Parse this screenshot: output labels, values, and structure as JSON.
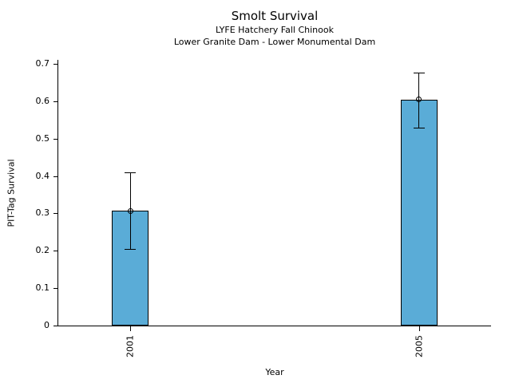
{
  "chart_data": {
    "type": "bar",
    "title": "Smolt Survival",
    "subtitle": [
      "LYFE Hatchery Fall Chinook",
      "Lower Granite Dam - Lower Monumental Dam"
    ],
    "xlabel": "Year",
    "ylabel": "PIT-Tag Survival",
    "categories": [
      "2001",
      "2005"
    ],
    "values": [
      0.307,
      0.605
    ],
    "error_bars": [
      [
        0.205,
        0.41
      ],
      [
        0.53,
        0.676
      ]
    ],
    "ylim": [
      0,
      0.7
    ],
    "yticks": [
      0,
      0.1,
      0.2,
      0.3,
      0.4,
      0.5,
      0.6,
      0.7
    ],
    "ytick_labels": [
      "0",
      "0.1",
      "0.2",
      "0.3",
      "0.4",
      "0.5",
      "0.6",
      "0.7"
    ],
    "marker": "open-circle",
    "bar_color": "#5AACD7",
    "edge_color": "#000000",
    "grid": false,
    "legend_position": "none",
    "x_tick_label_rotation": 90
  }
}
